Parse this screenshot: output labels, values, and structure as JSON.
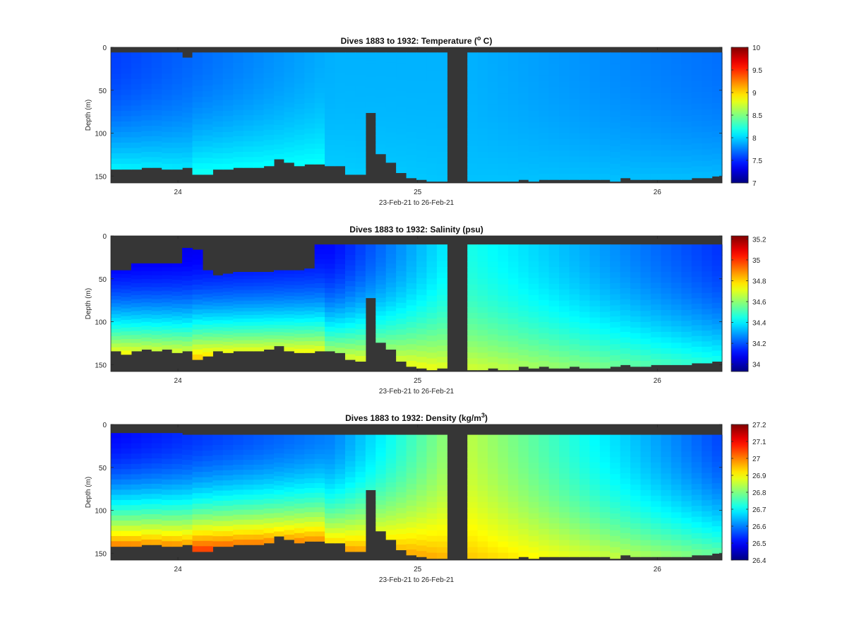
{
  "chart_data": [
    {
      "type": "heatmap",
      "title": "Dives 1883 to 1932: Temperature (",
      "title_sup": "o",
      "title_suffix": " C)",
      "xlabel": "23-Feb-21 to 26-Feb-21",
      "ylabel": "Depth (m)",
      "x_ticks": [
        "24",
        "25",
        "26"
      ],
      "y_ticks": [
        "0",
        "50",
        "100",
        "150"
      ],
      "colorbar_ticks": [
        "10",
        "9.5",
        "9",
        "8.5",
        "8",
        "7.5",
        "7"
      ],
      "clim": [
        7,
        10
      ],
      "colormap": "jet",
      "nodata_color": "#363636",
      "gap_day": 25.17,
      "xlim_days": [
        23.72,
        26.27
      ],
      "ylim": [
        0,
        158
      ],
      "field": {
        "surface": [
          7.55,
          7.9,
          7.9,
          7.7
        ],
        "deep": [
          8.25,
          8.0,
          7.95,
          7.95
        ],
        "knot_days": [
          23.72,
          24.65,
          25.2,
          26.27
        ],
        "bottom_max_days": [
          24.05,
          24.6
        ],
        "bottom_max_value": 8.25
      },
      "profile_top_depth": [
        6,
        6,
        6,
        6,
        6,
        6,
        6,
        12,
        6,
        6,
        6,
        6,
        6,
        6,
        6,
        6,
        6,
        6,
        6,
        6,
        6,
        6,
        6,
        6,
        6,
        6,
        6,
        6,
        6,
        6,
        6,
        6,
        6,
        6,
        6,
        6,
        6,
        6,
        6,
        6,
        6,
        6,
        6,
        6,
        6,
        6,
        6,
        6,
        6,
        6,
        6,
        6,
        6,
        6,
        6,
        6,
        6,
        6,
        6,
        6
      ],
      "profile_bottom_depth": [
        142,
        142,
        142,
        140,
        140,
        142,
        142,
        140,
        148,
        148,
        142,
        142,
        140,
        140,
        140,
        138,
        130,
        134,
        138,
        136,
        136,
        138,
        138,
        148,
        148,
        76,
        124,
        134,
        146,
        152,
        154,
        156,
        156,
        156,
        156,
        156,
        156,
        156,
        156,
        156,
        154,
        156,
        154,
        154,
        154,
        154,
        154,
        154,
        154,
        156,
        152,
        154,
        154,
        154,
        154,
        154,
        154,
        152,
        152,
        150
      ]
    },
    {
      "type": "heatmap",
      "title": "Dives 1883 to 1932: Salinity (psu)",
      "xlabel": "23-Feb-21 to 26-Feb-21",
      "ylabel": "Depth (m)",
      "x_ticks": [
        "24",
        "25",
        "26"
      ],
      "y_ticks": [
        "0",
        "50",
        "100",
        "150"
      ],
      "colorbar_ticks": [
        "35.2",
        "35",
        "34.8",
        "34.6",
        "34.4",
        "34.2",
        "34"
      ],
      "clim": [
        33.93,
        35.23
      ],
      "colormap": "jet",
      "nodata_color": "#363636",
      "gap_day": 25.17,
      "xlim_days": [
        23.72,
        26.27
      ],
      "ylim": [
        0,
        158
      ],
      "field": {
        "surface": [
          34.05,
          34.1,
          34.45,
          34.15
        ],
        "deep": [
          35.0,
          34.85,
          34.7,
          34.5
        ],
        "knot_days": [
          23.72,
          24.65,
          25.2,
          26.27
        ],
        "bottom_max_days": [
          24.05,
          24.6
        ],
        "bottom_max_value": 35.0
      },
      "profile_top_depth": [
        40,
        40,
        32,
        32,
        32,
        32,
        32,
        14,
        16,
        40,
        46,
        44,
        42,
        42,
        42,
        42,
        40,
        40,
        40,
        38,
        10,
        10,
        10,
        10,
        10,
        10,
        10,
        10,
        10,
        10,
        10,
        10,
        10,
        10,
        10,
        10,
        10,
        10,
        10,
        10,
        10,
        10,
        10,
        10,
        10,
        10,
        10,
        10,
        10,
        10,
        10,
        10,
        10,
        10,
        10,
        10,
        10,
        10,
        10,
        10
      ],
      "profile_bottom_depth": [
        134,
        138,
        134,
        132,
        134,
        132,
        136,
        134,
        144,
        140,
        134,
        136,
        134,
        134,
        134,
        132,
        128,
        134,
        136,
        136,
        134,
        134,
        136,
        144,
        146,
        72,
        124,
        132,
        146,
        152,
        154,
        156,
        154,
        156,
        154,
        156,
        156,
        154,
        156,
        156,
        152,
        154,
        152,
        154,
        154,
        152,
        154,
        154,
        154,
        152,
        150,
        152,
        152,
        150,
        150,
        150,
        150,
        148,
        148,
        146
      ]
    },
    {
      "type": "heatmap",
      "title": "Dives 1883 to 1932: Density (kg/m",
      "title_sup": "3",
      "title_suffix": ")",
      "xlabel": "23-Feb-21 to 26-Feb-21",
      "ylabel": "Depth (m)",
      "x_ticks": [
        "24",
        "25",
        "26"
      ],
      "y_ticks": [
        "0",
        "50",
        "100",
        "150"
      ],
      "colorbar_ticks": [
        "27.2",
        "27.1",
        "27",
        "26.9",
        "26.8",
        "26.7",
        "26.6",
        "26.5",
        "26.4"
      ],
      "clim": [
        26.4,
        27.2
      ],
      "colormap": "jet",
      "nodata_color": "#363636",
      "gap_day": 25.17,
      "xlim_days": [
        23.72,
        26.27
      ],
      "ylim": [
        0,
        158
      ],
      "field": {
        "surface": [
          26.5,
          26.6,
          26.85,
          26.55
        ],
        "deep": [
          27.15,
          27.05,
          26.95,
          26.8
        ],
        "knot_days": [
          23.72,
          24.65,
          25.2,
          26.27
        ],
        "bottom_max_days": [
          24.05,
          24.6
        ],
        "bottom_max_value": 27.15
      },
      "profile_top_depth": [
        10,
        10,
        10,
        10,
        10,
        10,
        10,
        12,
        12,
        12,
        12,
        12,
        12,
        12,
        12,
        12,
        12,
        12,
        12,
        12,
        12,
        12,
        12,
        12,
        12,
        12,
        12,
        12,
        12,
        12,
        12,
        12,
        12,
        12,
        12,
        12,
        12,
        12,
        12,
        12,
        12,
        12,
        12,
        12,
        12,
        12,
        12,
        12,
        12,
        12,
        12,
        12,
        12,
        12,
        12,
        12,
        12,
        12,
        12,
        12
      ],
      "profile_bottom_depth": [
        142,
        142,
        142,
        140,
        140,
        142,
        142,
        140,
        148,
        148,
        142,
        142,
        140,
        140,
        140,
        138,
        130,
        134,
        138,
        136,
        136,
        138,
        138,
        148,
        148,
        76,
        124,
        134,
        146,
        152,
        154,
        156,
        156,
        156,
        156,
        156,
        156,
        156,
        156,
        156,
        154,
        156,
        154,
        154,
        154,
        154,
        154,
        154,
        154,
        156,
        152,
        154,
        154,
        154,
        154,
        154,
        154,
        152,
        152,
        150
      ]
    }
  ]
}
